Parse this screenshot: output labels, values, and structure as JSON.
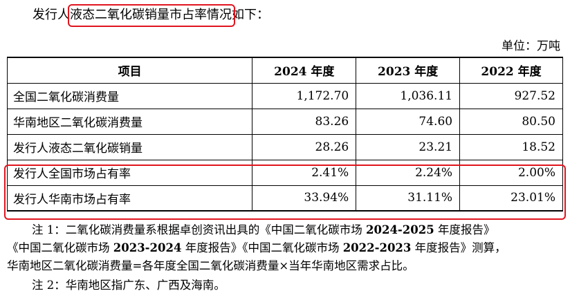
{
  "intro": {
    "prefix": "发行人",
    "highlight": "液态二氧化碳销量市占率",
    "suffix": "情况如下："
  },
  "unit_label": "单位：万吨",
  "table": {
    "headers": [
      "项目",
      "2024 年度",
      "2023 年度",
      "2022 年度"
    ],
    "rows": [
      {
        "label": "全国二氧化碳消费量",
        "values": [
          "1,172.70",
          "1,036.11",
          "927.52"
        ]
      },
      {
        "label": "华南地区二氧化碳消费量",
        "values": [
          "83.26",
          "74.60",
          "80.50"
        ]
      },
      {
        "label": "发行人液态二氧化碳销量",
        "values": [
          "28.26",
          "23.21",
          "18.52"
        ]
      },
      {
        "label": "发行人全国市场占有率",
        "values": [
          "2.41%",
          "2.24%",
          "2.00%"
        ]
      },
      {
        "label": "发行人华南市场占有率",
        "values": [
          "33.94%",
          "31.11%",
          "23.01%"
        ]
      }
    ]
  },
  "notes": {
    "note1_a": "注 1：二氧化碳消费量系根据卓创资讯出具的《中国二氧化碳市场 ",
    "note1_b": "2024-2025",
    "note1_c": " 年度报告》",
    "note1_line2_a": "《中国二氧化碳市场 ",
    "note1_line2_b": "2023-2024",
    "note1_line2_c": " 年度报告》《中国二氧化碳市场 ",
    "note1_line2_d": "2022-2023",
    "note1_line2_e": " 年度报告》测算，",
    "note1_line3": "华南地区二氧化碳消费量=各年度全国二氧化碳消费量×当年华南地区需求占比。",
    "note2": "注 2：华南地区指广东、广西及海南。"
  },
  "colors": {
    "highlight_border": "#e0141e"
  }
}
